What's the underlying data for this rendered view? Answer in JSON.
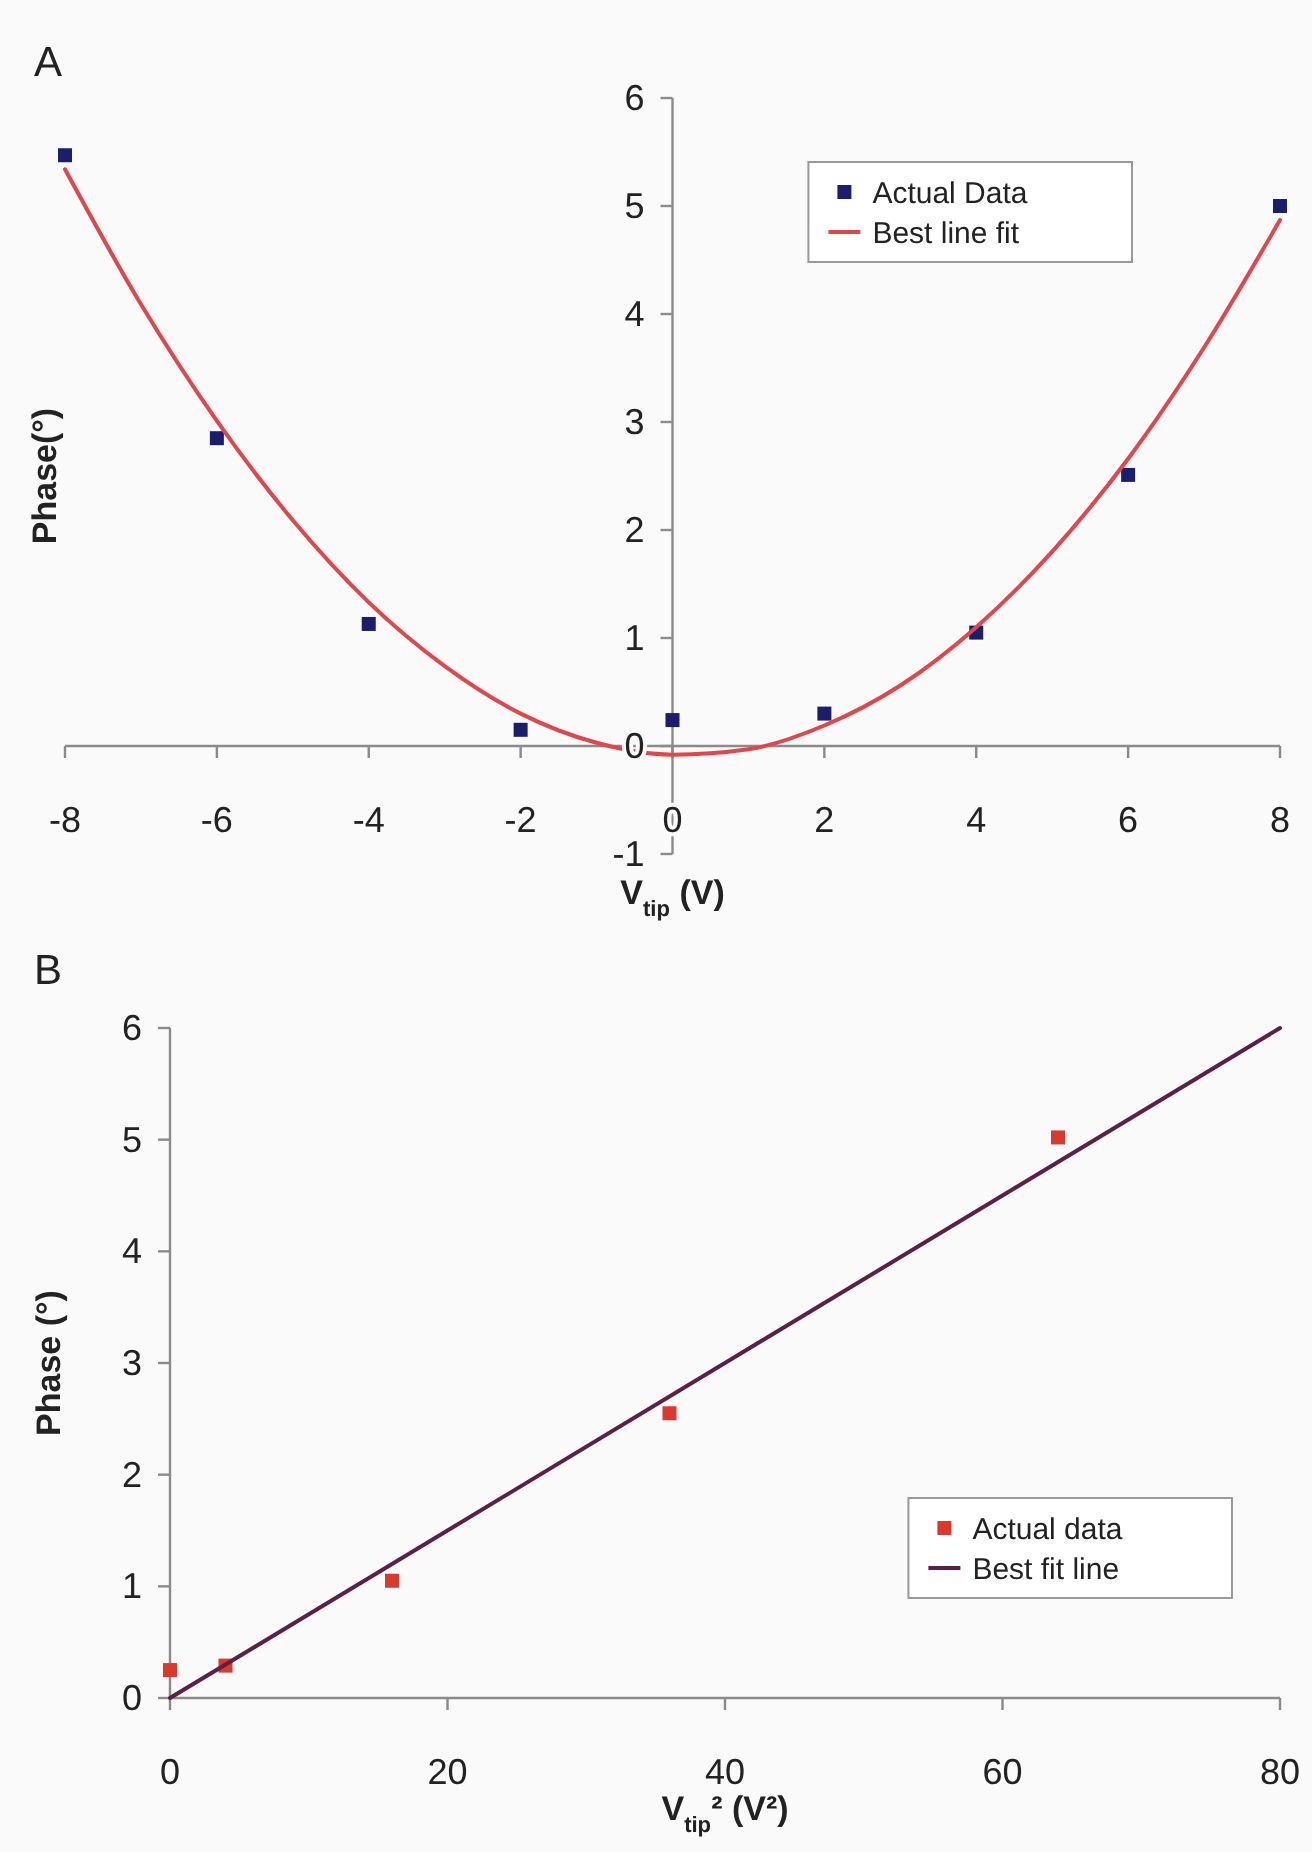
{
  "chart_data": [
    {
      "type": "scatter",
      "title": "A",
      "xlabel": "V$_{tip}$ (V)",
      "ylabel": "Phase(°)",
      "xlim": [
        -8,
        8
      ],
      "xticks": [
        -8,
        -6,
        -4,
        -2,
        0,
        2,
        4,
        6,
        8
      ],
      "ylim": [
        -1,
        6
      ],
      "yticks": [
        -1,
        0,
        1,
        2,
        3,
        4,
        5,
        6
      ],
      "legend": "top right",
      "series": [
        {
          "name": "Actual Data",
          "marker": "square",
          "color": "#1b1f6b",
          "x": [
            -8,
            -6,
            -4,
            -2,
            0,
            2,
            4,
            6,
            8
          ],
          "values": [
            5.47,
            2.85,
            1.13,
            0.15,
            0.24,
            0.3,
            1.05,
            2.51,
            5.0
          ]
        },
        {
          "name": "Best line fit",
          "type": "line",
          "color": "#e0474c",
          "x": [
            -8,
            -7,
            -6,
            -5,
            -4,
            -3,
            -2,
            -1,
            0,
            1,
            2,
            3,
            4,
            5,
            6,
            7,
            8
          ],
          "values": [
            5.34,
            4.09,
            3.01,
            2.09,
            1.33,
            0.74,
            0.3,
            0.03,
            -0.08,
            -0.03,
            0.19,
            0.56,
            1.1,
            1.8,
            2.66,
            3.69,
            4.87
          ]
        }
      ]
    },
    {
      "type": "scatter",
      "title": "B",
      "xlabel": "V$_{tip}$² (V²)",
      "ylabel": "Phase (°)",
      "xlim": [
        0,
        80
      ],
      "xticks": [
        0,
        20,
        40,
        60,
        80
      ],
      "ylim": [
        0,
        6
      ],
      "yticks": [
        0,
        1,
        2,
        3,
        4,
        5,
        6
      ],
      "legend": "bottom right",
      "series": [
        {
          "name": "Actual data",
          "marker": "square",
          "color": "#d83a2e",
          "x": [
            0,
            4,
            16,
            36,
            64
          ],
          "values": [
            0.25,
            0.29,
            1.05,
            2.55,
            5.02
          ]
        },
        {
          "name": "Best fit line",
          "type": "line",
          "color": "#5c1f45",
          "x": [
            0,
            80
          ],
          "values": [
            0,
            6
          ]
        }
      ]
    }
  ]
}
